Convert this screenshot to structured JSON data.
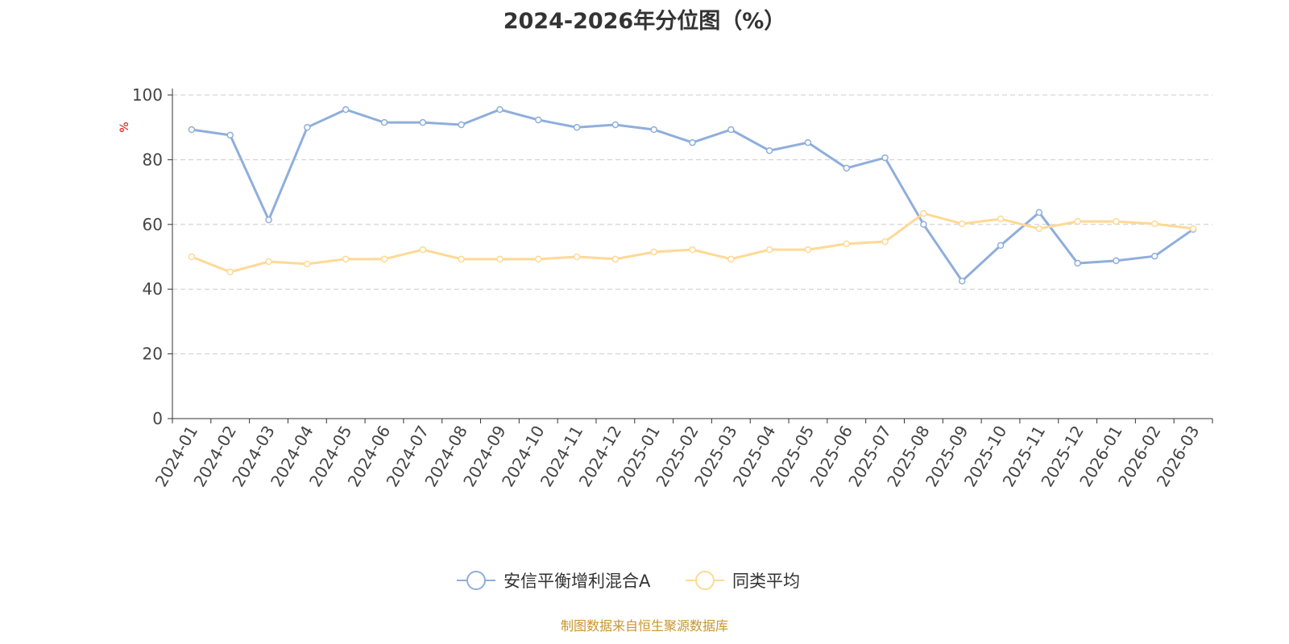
{
  "chart_data": {
    "type": "line",
    "title": "2024-2026年分位图（%）",
    "ylabel": "%",
    "xlabel": "",
    "ylim": [
      0,
      100
    ],
    "yticks": [
      0,
      20,
      40,
      60,
      80,
      100
    ],
    "grid": true,
    "legend_position": "bottom-center",
    "categories": [
      "2024-01",
      "2024-02",
      "2024-03",
      "2024-04",
      "2024-05",
      "2024-06",
      "2024-07",
      "2024-08",
      "2024-09",
      "2024-10",
      "2024-11",
      "2024-12",
      "2025-01",
      "2025-02",
      "2025-03",
      "2025-04",
      "2025-05",
      "2025-06",
      "2025-07",
      "2025-08",
      "2025-09",
      "2025-10",
      "2025-11",
      "2025-12",
      "2026-01",
      "2026-02",
      "2026-03"
    ],
    "series": [
      {
        "name": "安信平衡增利混合A",
        "color": "#8FAEDC",
        "values": [
          89.3,
          87.6,
          61.4,
          90.0,
          95.5,
          91.5,
          91.5,
          90.8,
          95.5,
          92.3,
          90.0,
          90.8,
          89.3,
          85.3,
          89.3,
          82.8,
          85.3,
          77.4,
          80.6,
          60.0,
          42.5,
          53.5,
          63.7,
          48.0,
          48.8,
          50.2,
          58.5
        ]
      },
      {
        "name": "同类平均",
        "color": "#FFD995",
        "values": [
          50.0,
          45.3,
          48.5,
          47.8,
          49.3,
          49.3,
          52.2,
          49.3,
          49.3,
          49.3,
          50.0,
          49.3,
          51.5,
          52.2,
          49.3,
          52.2,
          52.2,
          54.0,
          54.7,
          63.4,
          60.2,
          61.7,
          58.7,
          60.9,
          60.9,
          60.2,
          58.7
        ]
      }
    ]
  },
  "footer": {
    "source": "制图数据来自恒生聚源数据库"
  }
}
